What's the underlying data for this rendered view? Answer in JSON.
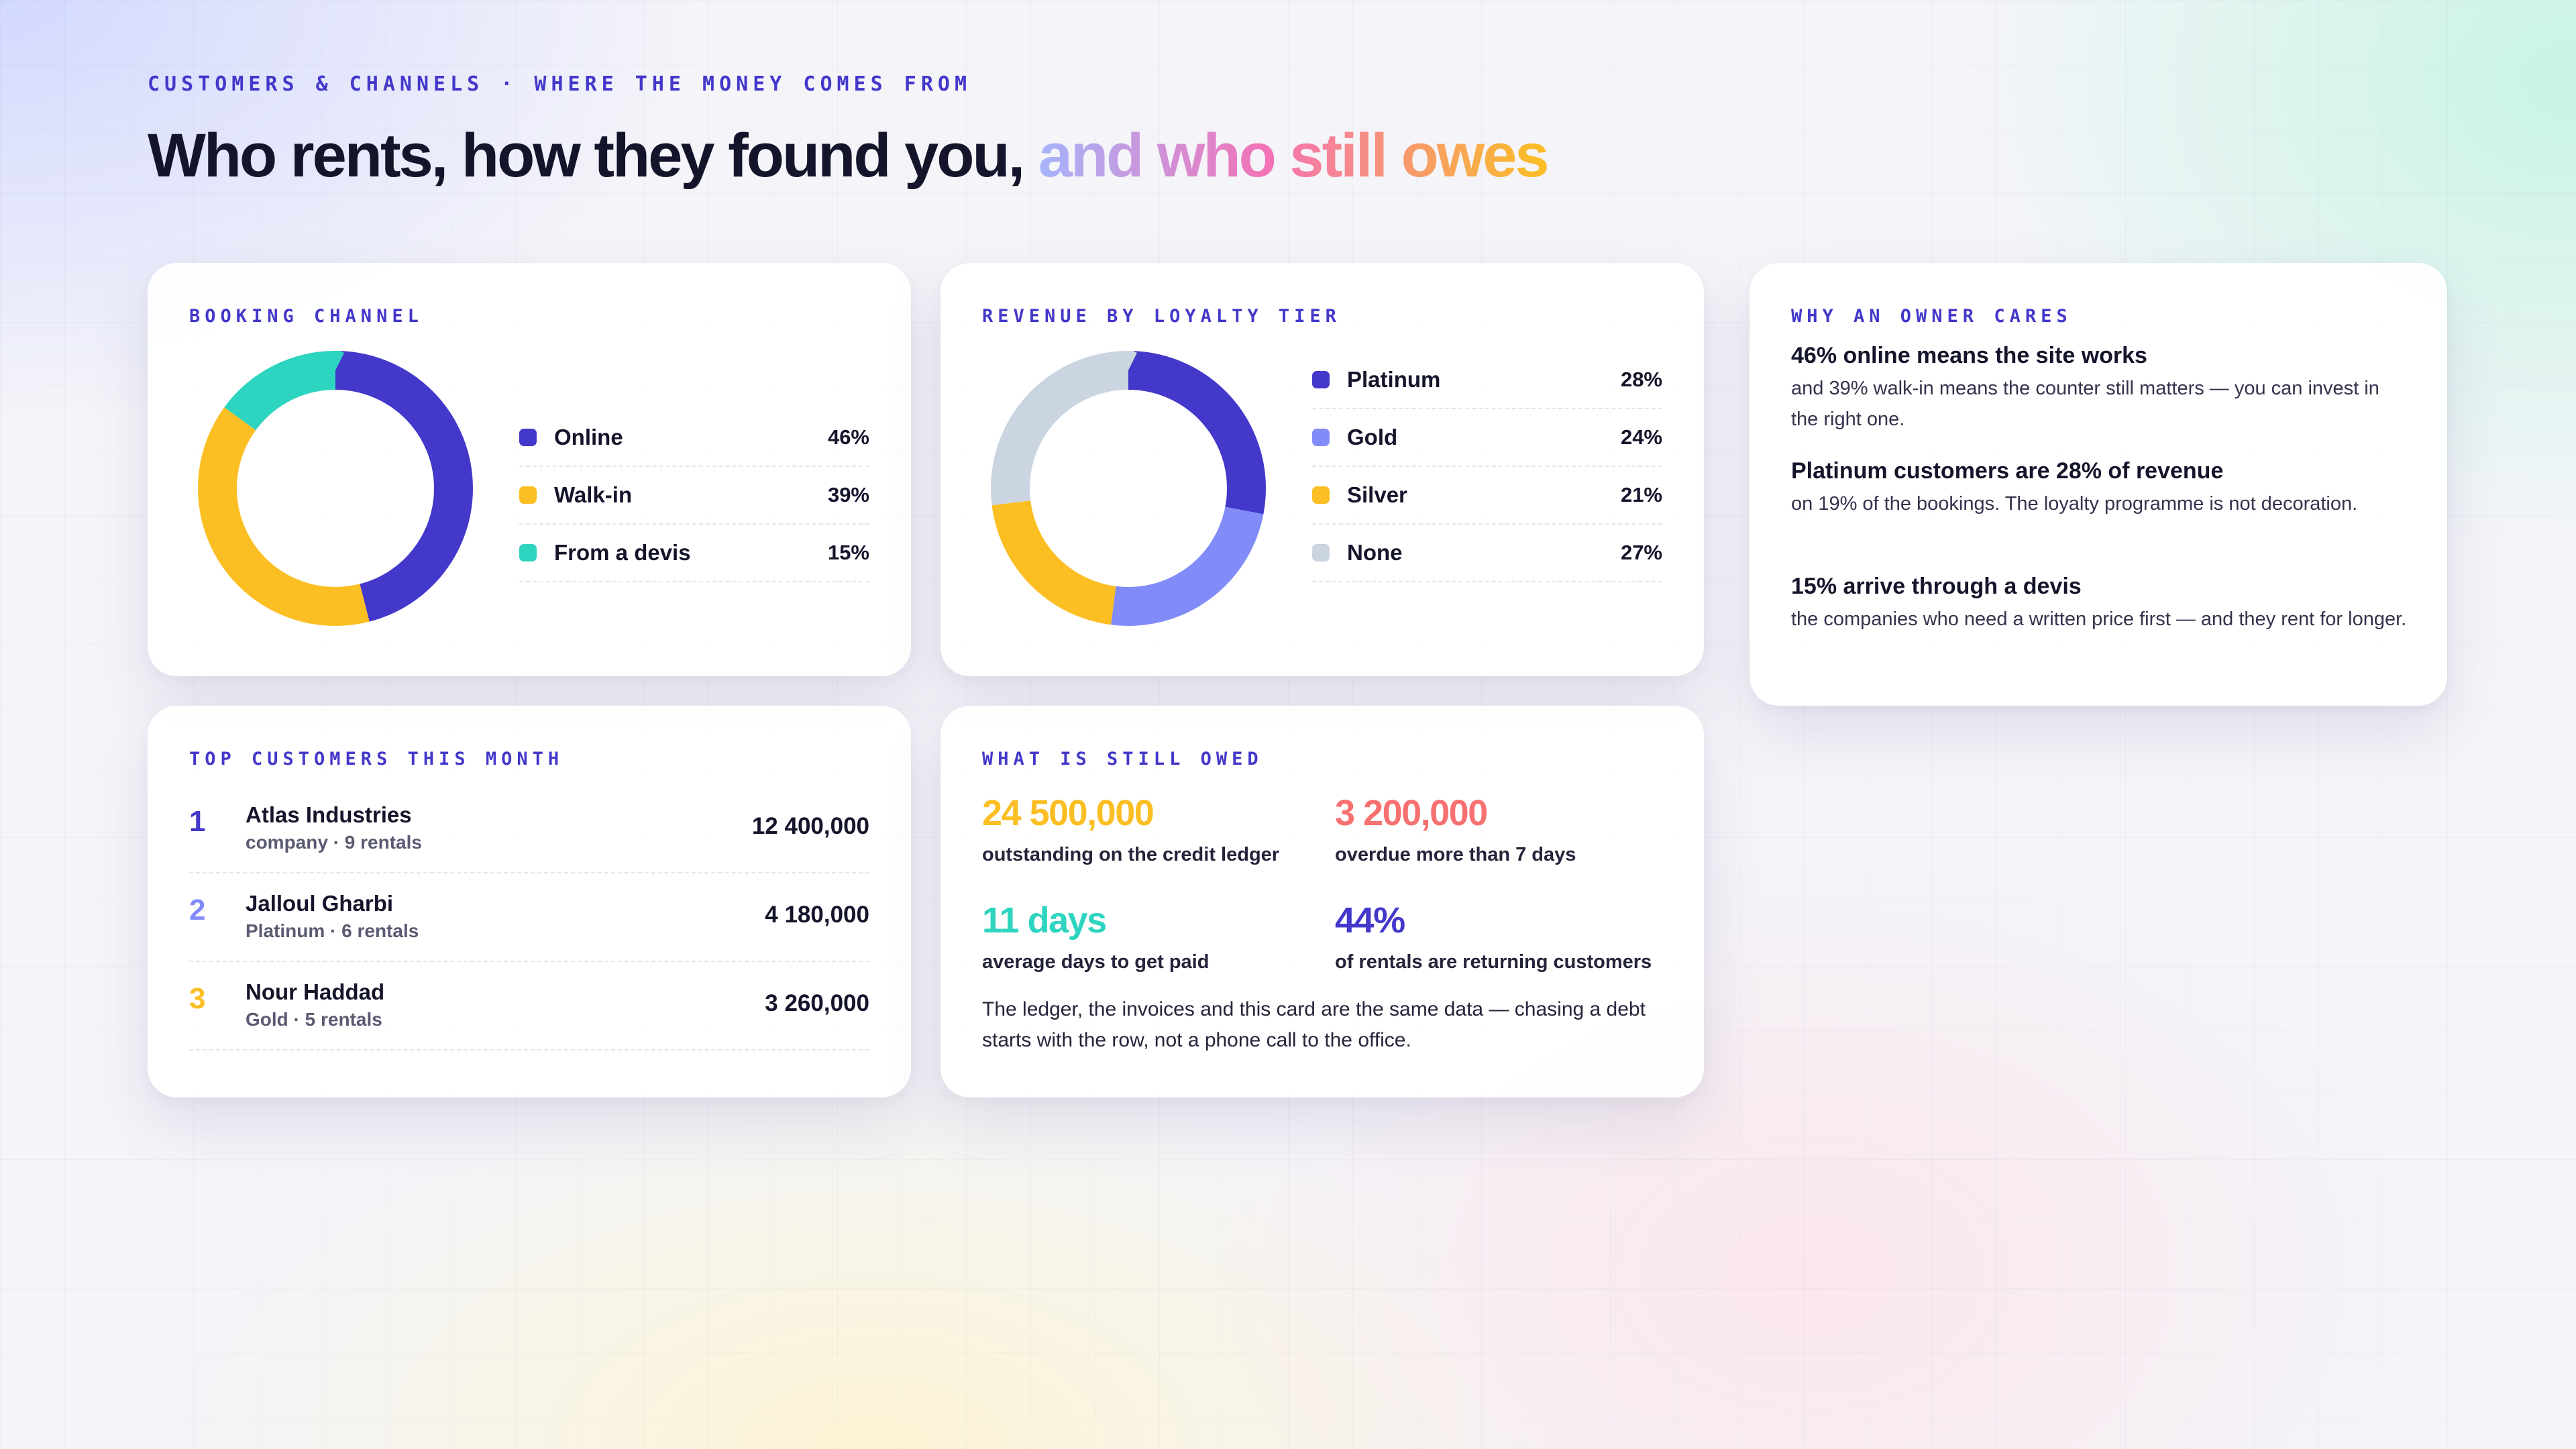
{
  "header": {
    "eyebrow": "CUSTOMERS & CHANNELS · WHERE THE MONEY COMES FROM",
    "headline_plain": "Who rents, how they found you, ",
    "headline_highlight": "and who still owes"
  },
  "booking_channel": {
    "label": "BOOKING CHANNEL",
    "chart_data": {
      "type": "pie",
      "categories": [
        "Online",
        "Walk-in",
        "From a devis"
      ],
      "values": [
        46,
        39,
        15
      ],
      "value_labels": [
        "46%",
        "39%",
        "15%"
      ],
      "colors": [
        "#4338ca",
        "#fbbf24",
        "#2dd4bf"
      ]
    }
  },
  "loyalty_tier": {
    "label": "REVENUE BY LOYALTY TIER",
    "chart_data": {
      "type": "pie",
      "categories": [
        "Platinum",
        "Gold",
        "Silver",
        "None"
      ],
      "values": [
        28,
        24,
        21,
        27
      ],
      "value_labels": [
        "28%",
        "24%",
        "21%",
        "27%"
      ],
      "colors": [
        "#4338ca",
        "#818cf8",
        "#fbbf24",
        "#cbd5e1"
      ]
    }
  },
  "owner_cares": {
    "label": "WHY AN OWNER CARES",
    "items": [
      {
        "title": "46% online means the site works",
        "body": "and 39% walk-in means the counter still matters — you can invest in the right one."
      },
      {
        "title": "Platinum customers are 28% of revenue",
        "body": "on 19% of the bookings. The loyalty programme is not decoration."
      },
      {
        "title": "15% arrive through a devis",
        "body": "the companies who need a written price first — and they rent for longer."
      }
    ]
  },
  "top_customers": {
    "label": "TOP CUSTOMERS THIS MONTH",
    "rows": [
      {
        "rank": "1",
        "name": "Atlas Industries",
        "meta": "company · 9 rentals",
        "amount": "12 400,000",
        "color": "#4338ca"
      },
      {
        "rank": "2",
        "name": "Jalloul Gharbi",
        "meta": "Platinum · 6 rentals",
        "amount": "4 180,000",
        "color": "#818cf8"
      },
      {
        "rank": "3",
        "name": "Nour Haddad",
        "meta": "Gold · 5 rentals",
        "amount": "3 260,000",
        "color": "#fbbf24"
      }
    ]
  },
  "still_owed": {
    "label": "WHAT IS STILL OWED",
    "stats": [
      {
        "value": "24 500,000",
        "label": "outstanding on the credit ledger",
        "color": "#fbbf24"
      },
      {
        "value": "3 200,000",
        "label": "overdue more than 7 days",
        "color": "#f87171"
      },
      {
        "value": "11 days",
        "label": "average days to get paid",
        "color": "#2dd4bf"
      },
      {
        "value": "44%",
        "label": "of rentals are returning customers",
        "color": "#4338ca"
      }
    ],
    "note": "The ledger, the invoices and this card are the same data — chasing a debt starts with the row, not a phone call to the office."
  }
}
